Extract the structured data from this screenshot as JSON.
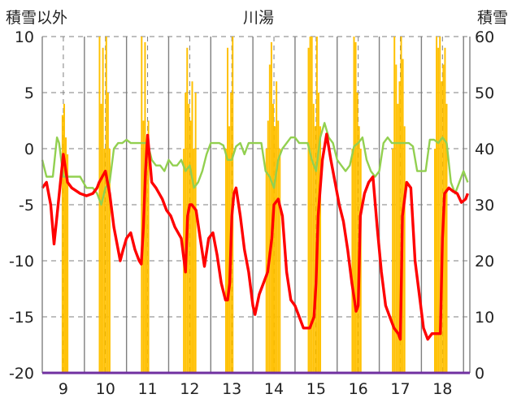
{
  "chart_data": {
    "type": "line",
    "title": "川湯",
    "left_axis_label": "積雪以外",
    "right_axis_label": "積雪",
    "left_ylim": [
      -20,
      10
    ],
    "right_ylim": [
      0,
      60
    ],
    "left_ticks": [
      "10",
      "5",
      "0",
      "-5",
      "-10",
      "-15",
      "-20"
    ],
    "right_ticks": [
      "60",
      "50",
      "40",
      "30",
      "20",
      "10",
      "0"
    ],
    "x_ticks": [
      "9",
      "10",
      "11",
      "12",
      "13",
      "14",
      "15",
      "16",
      "17",
      "18"
    ],
    "xlim": [
      8.5,
      18.65
    ],
    "grid": true,
    "legend": "none",
    "colors": {
      "snow_bars": "#ffc000",
      "red_series": "#ff0000",
      "green_series": "#92d050",
      "baseline": "#7030a0",
      "grid": "#7f7f7f"
    },
    "series": [
      {
        "axis": "left",
        "color": "#ff0000",
        "x": [
          8.5,
          8.6,
          8.7,
          8.78,
          8.85,
          9.0,
          9.1,
          9.2,
          9.4,
          9.55,
          9.7,
          9.8,
          9.85,
          10.0,
          10.1,
          10.2,
          10.35,
          10.42,
          10.5,
          10.6,
          10.7,
          10.8,
          10.85,
          10.9,
          10.95,
          11.0,
          11.1,
          11.2,
          11.35,
          11.45,
          11.55,
          11.65,
          11.8,
          11.9,
          11.95,
          12.0,
          12.05,
          12.15,
          12.25,
          12.35,
          12.45,
          12.55,
          12.65,
          12.75,
          12.85,
          12.9,
          12.95,
          13.0,
          13.05,
          13.1,
          13.2,
          13.3,
          13.4,
          13.5,
          13.55,
          13.65,
          13.75,
          13.85,
          13.95,
          14.0,
          14.1,
          14.2,
          14.3,
          14.4,
          14.5,
          14.6,
          14.7,
          14.85,
          14.95,
          15.0,
          15.05,
          15.15,
          15.25,
          15.35,
          15.45,
          15.55,
          15.65,
          15.75,
          15.85,
          15.95,
          16.0,
          16.05,
          16.15,
          16.25,
          16.35,
          16.45,
          16.55,
          16.65,
          16.75,
          16.85,
          16.95,
          17.0,
          17.05,
          17.15,
          17.25,
          17.35,
          17.45,
          17.55,
          17.65,
          17.75,
          17.85,
          17.95,
          18.0,
          18.05,
          18.15,
          18.25,
          18.35,
          18.45,
          18.55,
          18.6
        ],
        "values": [
          -3.5,
          -3,
          -5,
          -8.5,
          -6,
          -0.5,
          -3,
          -3.5,
          -4,
          -4.2,
          -4,
          -3.5,
          -3,
          -2,
          -4,
          -7,
          -10,
          -9,
          -8,
          -7.5,
          -9,
          -10,
          -10.3,
          -7,
          -2,
          1.2,
          -3,
          -3.5,
          -4.5,
          -5.5,
          -6,
          -7,
          -8,
          -11,
          -6,
          -5,
          -5,
          -5.5,
          -8,
          -10.5,
          -8,
          -7.5,
          -9.5,
          -12,
          -13.5,
          -13.5,
          -12,
          -6,
          -4,
          -3.5,
          -6,
          -9,
          -11,
          -14,
          -14.8,
          -13,
          -12,
          -11,
          -8,
          -5,
          -4.5,
          -6,
          -11,
          -13.5,
          -14,
          -15,
          -16,
          -16,
          -15,
          -12,
          -6,
          -1,
          1.3,
          -1,
          -3,
          -5,
          -6.5,
          -9,
          -12,
          -14.5,
          -14,
          -6,
          -4,
          -3,
          -2.5,
          -7,
          -11,
          -14,
          -15,
          -16,
          -16.5,
          -17,
          -6,
          -3,
          -3.5,
          -10,
          -13,
          -16,
          -17,
          -16.5,
          -16.5,
          -16.5,
          -8,
          -4,
          -3.5,
          -3.8,
          -4,
          -4.8,
          -4.5,
          -4
        ]
      },
      {
        "axis": "left",
        "color": "#92d050",
        "x": [
          8.5,
          8.6,
          8.75,
          8.85,
          8.9,
          9.0,
          9.1,
          9.25,
          9.4,
          9.55,
          9.7,
          9.8,
          9.9,
          10.0,
          10.1,
          10.2,
          10.3,
          10.4,
          10.5,
          10.6,
          10.7,
          10.8,
          10.9,
          11.0,
          11.1,
          11.2,
          11.3,
          11.4,
          11.5,
          11.6,
          11.7,
          11.8,
          11.9,
          12.0,
          12.1,
          12.2,
          12.3,
          12.4,
          12.5,
          12.6,
          12.7,
          12.8,
          12.9,
          13.0,
          13.1,
          13.2,
          13.3,
          13.4,
          13.5,
          13.6,
          13.7,
          13.8,
          13.9,
          14.0,
          14.1,
          14.2,
          14.3,
          14.4,
          14.5,
          14.6,
          14.7,
          14.8,
          14.9,
          15.0,
          15.1,
          15.2,
          15.3,
          15.4,
          15.5,
          15.6,
          15.7,
          15.8,
          15.9,
          16.0,
          16.1,
          16.2,
          16.3,
          16.4,
          16.5,
          16.6,
          16.7,
          16.8,
          16.9,
          17.0,
          17.1,
          17.2,
          17.3,
          17.4,
          17.5,
          17.6,
          17.7,
          17.8,
          17.9,
          18.0,
          18.1,
          18.2,
          18.3,
          18.4,
          18.5,
          18.6
        ],
        "values": [
          -1,
          -2.5,
          -2.5,
          1,
          0.5,
          -2.5,
          -2.5,
          -2.5,
          -2.5,
          -3.5,
          -3.5,
          -4,
          -5,
          -3.5,
          -3,
          0,
          0.5,
          0.5,
          0.8,
          0.5,
          0.5,
          0.5,
          0.5,
          0.5,
          -1,
          -1.5,
          -1.5,
          -2,
          -1,
          -1.5,
          -1.5,
          -1,
          -2,
          -1.5,
          -3.5,
          -3,
          -2,
          -0.5,
          0.5,
          0.5,
          0.5,
          0.3,
          -1,
          -1,
          0.2,
          0.5,
          -0.5,
          0.5,
          0.5,
          0.5,
          0.5,
          -2,
          -2.5,
          -3.5,
          -1,
          0,
          0.5,
          1,
          1,
          0.5,
          0.5,
          0.5,
          -1,
          -2,
          1,
          2.3,
          1,
          0.5,
          -1,
          -1.5,
          -2,
          -1.5,
          0.2,
          0.5,
          1,
          -1,
          -2,
          -2.5,
          -2,
          0.5,
          1,
          0.5,
          0.5,
          0.5,
          0.5,
          0.5,
          0.2,
          -2,
          -2,
          -2,
          0.8,
          0.8,
          0.5,
          1,
          0.5,
          -3,
          -4,
          -3,
          -2,
          -3
        ]
      }
    ],
    "bars": {
      "axis": "right",
      "color": "#ffc000",
      "x": [
        8.98,
        9.02,
        9.06,
        9.1,
        9.86,
        9.9,
        9.94,
        9.98,
        10.02,
        10.06,
        10.1,
        10.86,
        10.9,
        10.94,
        10.98,
        11.02,
        11.86,
        11.9,
        11.94,
        11.98,
        12.02,
        12.06,
        12.1,
        12.14,
        12.86,
        12.9,
        12.94,
        12.98,
        13.02,
        13.82,
        13.86,
        13.9,
        13.94,
        13.98,
        14.02,
        14.06,
        14.1,
        14.14,
        14.82,
        14.86,
        14.9,
        14.94,
        14.98,
        15.02,
        15.06,
        15.1,
        15.86,
        15.9,
        15.94,
        15.98,
        16.02,
        16.06,
        16.82,
        16.86,
        16.9,
        16.94,
        16.98,
        17.02,
        17.06,
        17.1,
        17.82,
        17.86,
        17.9,
        17.94,
        17.98,
        18.02,
        18.06,
        18.1
      ],
      "values": [
        46,
        48,
        42,
        39,
        60,
        48,
        58,
        40,
        60,
        50,
        40,
        60,
        45,
        59,
        41,
        45,
        40,
        50,
        58,
        48,
        45,
        52,
        40,
        50,
        40,
        58,
        44,
        50,
        60,
        40,
        45,
        55,
        59,
        48,
        44,
        52,
        45,
        40,
        58,
        60,
        60,
        48,
        44,
        60,
        50,
        44,
        40,
        60,
        59,
        50,
        44,
        40,
        40,
        60,
        55,
        48,
        52,
        60,
        56,
        44,
        40,
        60,
        58,
        60,
        52,
        55,
        58,
        48
      ]
    }
  }
}
